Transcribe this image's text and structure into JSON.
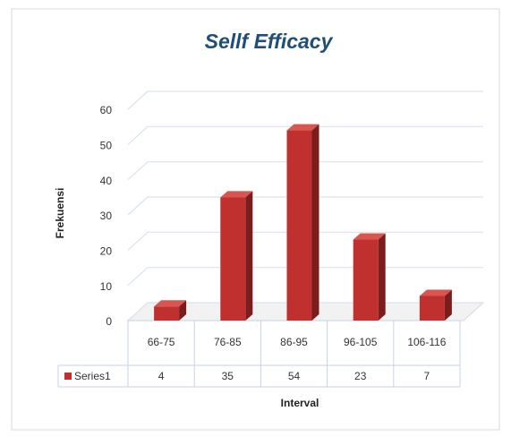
{
  "chart_data": {
    "type": "bar3d",
    "title": "Sellf Efficacy",
    "y_label": "Frekuensi",
    "x_label": "Interval",
    "categories": [
      "66-75",
      "76-85",
      "86-95",
      "96-105",
      "106-116"
    ],
    "series": [
      {
        "name": "Series1",
        "color": "#c0302f",
        "values": [
          4,
          35,
          54,
          23,
          7
        ]
      }
    ],
    "ylim": [
      0,
      60
    ],
    "yticks": [
      0,
      10,
      20,
      30,
      40,
      50,
      60
    ],
    "grid": true,
    "data_table": true
  }
}
